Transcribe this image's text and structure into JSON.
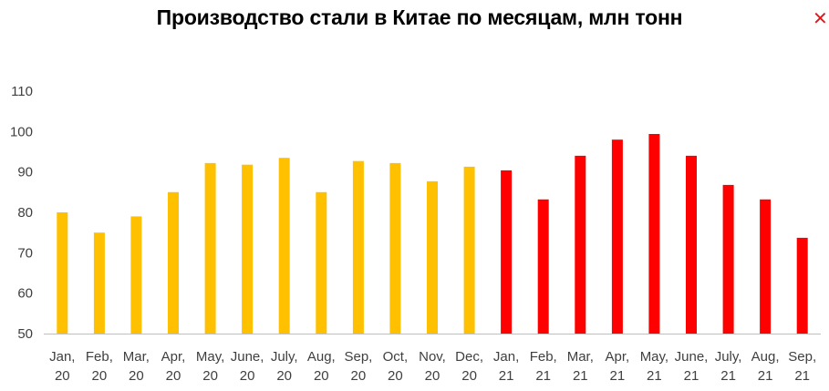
{
  "chart_data": {
    "type": "bar",
    "title": "Производство стали в Китае по месяцам, млн тонн",
    "xlabel": "",
    "ylabel": "",
    "ylim": [
      50,
      110
    ],
    "yticks": [
      "50",
      "60",
      "70",
      "80",
      "90",
      "100",
      "110"
    ],
    "grid": false,
    "categories": [
      [
        "Jan,",
        "20"
      ],
      [
        "Feb,",
        "20"
      ],
      [
        "Mar,",
        "20"
      ],
      [
        "Apr,",
        "20"
      ],
      [
        "May,",
        "20"
      ],
      [
        "June,",
        "20"
      ],
      [
        "July,",
        "20"
      ],
      [
        "Aug,",
        "20"
      ],
      [
        "Sep,",
        "20"
      ],
      [
        "Oct,",
        "20"
      ],
      [
        "Nov,",
        "20"
      ],
      [
        "Dec,",
        "20"
      ],
      [
        "Jan,",
        "21"
      ],
      [
        "Feb,",
        "21"
      ],
      [
        "Mar,",
        "21"
      ],
      [
        "Apr,",
        "21"
      ],
      [
        "May,",
        "21"
      ],
      [
        "June,",
        "21"
      ],
      [
        "July,",
        "21"
      ],
      [
        "Aug,",
        "21"
      ],
      [
        "Sep,",
        "21"
      ]
    ],
    "values": [
      80,
      75,
      79,
      85,
      92.2,
      91.8,
      93.5,
      85,
      92.7,
      92.2,
      87.7,
      91.3,
      90.4,
      83.2,
      94,
      98,
      99.4,
      94,
      86.8,
      83.2,
      73.7
    ],
    "bar_colors": [
      "#ffc000",
      "#ffc000",
      "#ffc000",
      "#ffc000",
      "#ffc000",
      "#ffc000",
      "#ffc000",
      "#ffc000",
      "#ffc000",
      "#ffc000",
      "#ffc000",
      "#ffc000",
      "#ff0000",
      "#ff0000",
      "#ff0000",
      "#ff0000",
      "#ff0000",
      "#ff0000",
      "#ff0000",
      "#ff0000",
      "#ff0000"
    ],
    "colors": {
      "year_2020": "#ffc000",
      "year_2021": "#ff0000",
      "axis": "#bfbfbf",
      "text": "#404040"
    }
  },
  "ui": {
    "close_icon": "close-icon",
    "close_glyph": "✕",
    "close_color": "#e21a1a"
  }
}
